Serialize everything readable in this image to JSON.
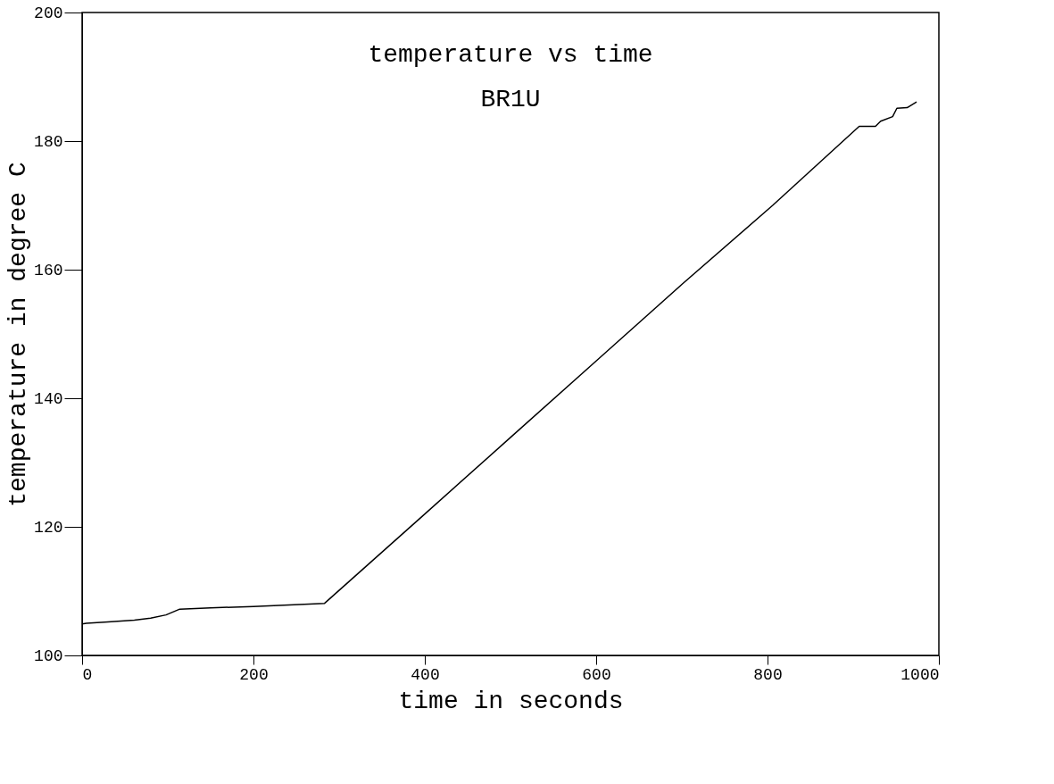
{
  "chart_data": {
    "type": "line",
    "title": "temperature vs time",
    "subtitle": "BR1U",
    "xlabel": "time in seconds",
    "ylabel": "temperature in degree C",
    "x": [
      0,
      5,
      30,
      61,
      80,
      98,
      114,
      150,
      200,
      283,
      400,
      500,
      600,
      700,
      806,
      907,
      926,
      932,
      946,
      951,
      963,
      974
    ],
    "series": [
      {
        "color": "#000000",
        "values": [
          104.9,
          105.0,
          105.2,
          105.5,
          105.8,
          106.3,
          107.2,
          107.4,
          107.6,
          108.1,
          122.0,
          133.9,
          145.8,
          157.7,
          170.0,
          182.3,
          182.3,
          183.1,
          183.8,
          185.1,
          185.2,
          186.1
        ]
      }
    ],
    "xlim": [
      0,
      1000
    ],
    "xticks": [
      0,
      200,
      400,
      600,
      800,
      1000
    ],
    "ylim": [
      100,
      200
    ],
    "yticks": [
      100,
      120,
      140,
      160,
      180,
      200
    ],
    "grid": false,
    "legend": false,
    "marker": "none",
    "line_style": "solid"
  }
}
